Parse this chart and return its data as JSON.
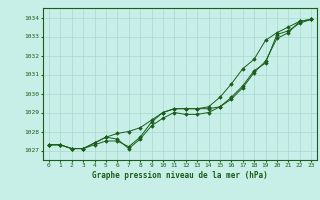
{
  "background_color": "#c8eee8",
  "grid_color": "#a8d8d0",
  "line_color": "#1a5e1a",
  "text_color": "#1a5e1a",
  "ylabel_ticks": [
    1027,
    1028,
    1029,
    1030,
    1031,
    1032,
    1033,
    1034
  ],
  "xlim": [
    -0.5,
    23.5
  ],
  "ylim": [
    1026.5,
    1034.5
  ],
  "xlabel": "Graphe pression niveau de la mer (hPa)",
  "series1": [
    1027.3,
    1027.3,
    1027.1,
    1027.1,
    1027.3,
    1027.5,
    1027.5,
    1027.2,
    1027.7,
    1028.5,
    1029.0,
    1029.2,
    1029.2,
    1029.2,
    1029.2,
    1029.3,
    1029.7,
    1030.3,
    1031.1,
    1031.7,
    1032.9,
    1033.2,
    1033.8,
    1033.9
  ],
  "series2": [
    1027.3,
    1027.3,
    1027.1,
    1027.1,
    1027.4,
    1027.7,
    1027.6,
    1027.1,
    1027.6,
    1028.3,
    1028.7,
    1029.0,
    1028.9,
    1028.9,
    1029.0,
    1029.3,
    1029.8,
    1030.4,
    1031.2,
    1031.6,
    1033.1,
    1033.3,
    1033.7,
    1033.9
  ],
  "series3": [
    1027.3,
    1027.3,
    1027.1,
    1027.1,
    1027.4,
    1027.7,
    1027.9,
    1028.0,
    1028.2,
    1028.6,
    1029.0,
    1029.2,
    1029.2,
    1029.2,
    1029.3,
    1029.8,
    1030.5,
    1031.3,
    1031.8,
    1032.8,
    1033.2,
    1033.5,
    1033.8,
    1033.9
  ]
}
